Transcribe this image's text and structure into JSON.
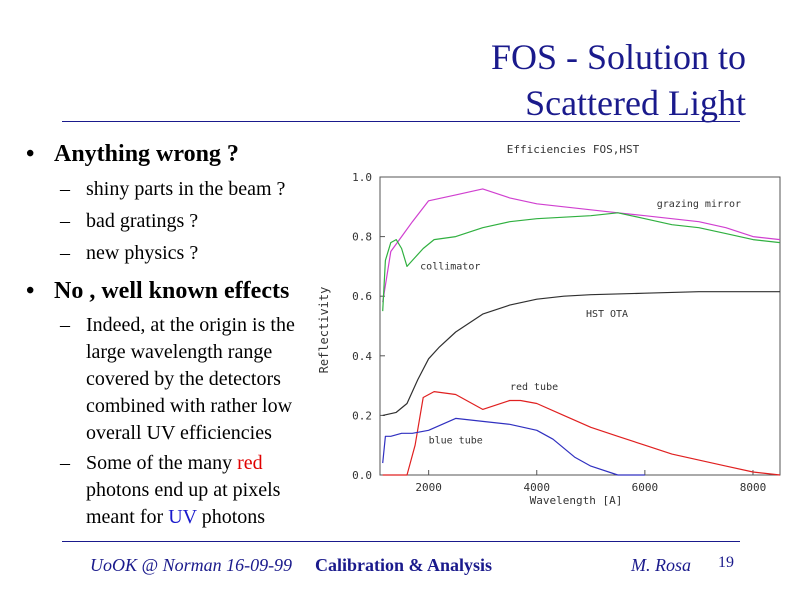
{
  "slide": {
    "title_line1": "FOS - Solution  to",
    "title_line2": "Scattered Light"
  },
  "bullets": [
    {
      "text": "Anything wrong ?",
      "subs": [
        "shiny parts in the beam ?",
        "bad gratings ?",
        "new physics ?"
      ]
    },
    {
      "text": "No , well known effects",
      "subs": [
        "Indeed, at the origin is the large wavelength range covered by the detectors combined with rather low overall UV efficiencies",
        {
          "before": "Some of the many ",
          "red": "red",
          "middle": " photons end up at pixels meant for ",
          "blue": "UV",
          "after": " photons"
        }
      ]
    }
  ],
  "chart_data": {
    "type": "line",
    "title": "Efficiencies FOS,HST",
    "xlabel": "Wavelength [A]",
    "ylabel": "Reflectivity",
    "xlim": [
      1100,
      8500
    ],
    "ylim": [
      0.0,
      1.0
    ],
    "xticks": [
      "2000",
      "4000",
      "6000",
      "8000"
    ],
    "yticks": [
      "0.0",
      "0.2",
      "0.4",
      "0.6",
      "0.8",
      "1.0"
    ],
    "series": [
      {
        "name": "grazing mirror",
        "color": "#d040d0",
        "x": [
          1150,
          1300,
          1500,
          1700,
          2000,
          2500,
          3000,
          3500,
          4000,
          4500,
          5000,
          5500,
          6000,
          6500,
          7000,
          7500,
          8000,
          8500
        ],
        "y": [
          0.58,
          0.75,
          0.8,
          0.85,
          0.92,
          0.94,
          0.96,
          0.93,
          0.91,
          0.9,
          0.89,
          0.88,
          0.87,
          0.86,
          0.85,
          0.83,
          0.8,
          0.79
        ]
      },
      {
        "name": "collimator",
        "color": "#30b040",
        "x": [
          1150,
          1200,
          1300,
          1400,
          1500,
          1600,
          1700,
          1900,
          2100,
          2500,
          3000,
          3500,
          4000,
          4500,
          5000,
          5500,
          6000,
          6500,
          7000,
          7500,
          8000,
          8500
        ],
        "y": [
          0.55,
          0.72,
          0.78,
          0.79,
          0.76,
          0.7,
          0.72,
          0.76,
          0.79,
          0.8,
          0.83,
          0.85,
          0.86,
          0.865,
          0.87,
          0.88,
          0.86,
          0.84,
          0.83,
          0.81,
          0.79,
          0.78
        ]
      },
      {
        "name": "HST OTA",
        "color": "#303030",
        "x": [
          1150,
          1400,
          1600,
          1800,
          2000,
          2200,
          2500,
          3000,
          3500,
          4000,
          4500,
          5000,
          6000,
          7000,
          8000,
          8500
        ],
        "y": [
          0.2,
          0.21,
          0.24,
          0.32,
          0.39,
          0.43,
          0.48,
          0.54,
          0.57,
          0.59,
          0.6,
          0.605,
          0.61,
          0.615,
          0.615,
          0.615
        ]
      },
      {
        "name": "red tube",
        "color": "#e02020",
        "x": [
          1150,
          1600,
          1750,
          1900,
          2100,
          2500,
          3000,
          3500,
          3700,
          4000,
          4500,
          5000,
          5500,
          6000,
          6500,
          7000,
          7500,
          8000,
          8500
        ],
        "y": [
          0.0,
          0.0,
          0.1,
          0.26,
          0.28,
          0.27,
          0.22,
          0.25,
          0.25,
          0.24,
          0.2,
          0.16,
          0.13,
          0.1,
          0.07,
          0.05,
          0.03,
          0.01,
          0.0
        ]
      },
      {
        "name": "blue tube",
        "color": "#3030c0",
        "x": [
          1150,
          1200,
          1300,
          1500,
          1700,
          2000,
          2500,
          3000,
          3500,
          4000,
          4300,
          4700,
          5000,
          5500,
          6000
        ],
        "y": [
          0.04,
          0.13,
          0.13,
          0.14,
          0.14,
          0.15,
          0.19,
          0.18,
          0.17,
          0.15,
          0.12,
          0.06,
          0.03,
          0.0,
          0.0
        ]
      }
    ],
    "labels": [
      "grazing mirror",
      "collimator",
      "HST OTA",
      "red tube",
      "blue tube"
    ]
  },
  "footer": {
    "left": "UoOK @ Norman  16-09-99",
    "center": "Calibration & Analysis",
    "right": "M. Rosa",
    "page": "19"
  }
}
